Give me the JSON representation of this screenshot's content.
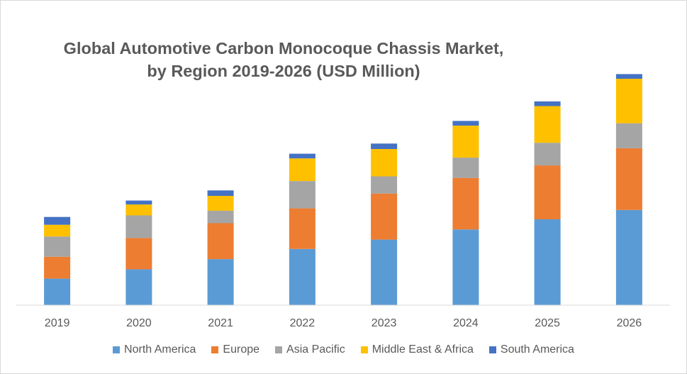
{
  "chart_data": {
    "type": "bar",
    "stacked": true,
    "title": "Global Automotive Carbon Monocoque Chassis Market,",
    "subtitle": "by Region 2019-2026 (USD Million)",
    "categories": [
      "2019",
      "2020",
      "2021",
      "2022",
      "2023",
      "2024",
      "2025",
      "2026"
    ],
    "series": [
      {
        "name": "North America",
        "color": "#5b9bd5",
        "values": [
          34,
          46,
          59,
          72,
          84,
          97,
          110,
          122
        ]
      },
      {
        "name": "Europe",
        "color": "#ed7d31",
        "values": [
          28,
          40,
          46,
          52,
          59,
          66,
          69,
          79
        ]
      },
      {
        "name": "Asia Pacific",
        "color": "#a5a5a5",
        "values": [
          26,
          29,
          16,
          35,
          22,
          26,
          29,
          32
        ]
      },
      {
        "name": "Middle East & Africa",
        "color": "#ffc000",
        "values": [
          15,
          14,
          19,
          29,
          35,
          41,
          47,
          57
        ]
      },
      {
        "name": "South America",
        "color": "#4472c4",
        "values": [
          10,
          5,
          7,
          6,
          7,
          6,
          6,
          6
        ]
      }
    ],
    "ylim": [
      0,
      300
    ],
    "grid": false,
    "legend_position": "bottom"
  }
}
